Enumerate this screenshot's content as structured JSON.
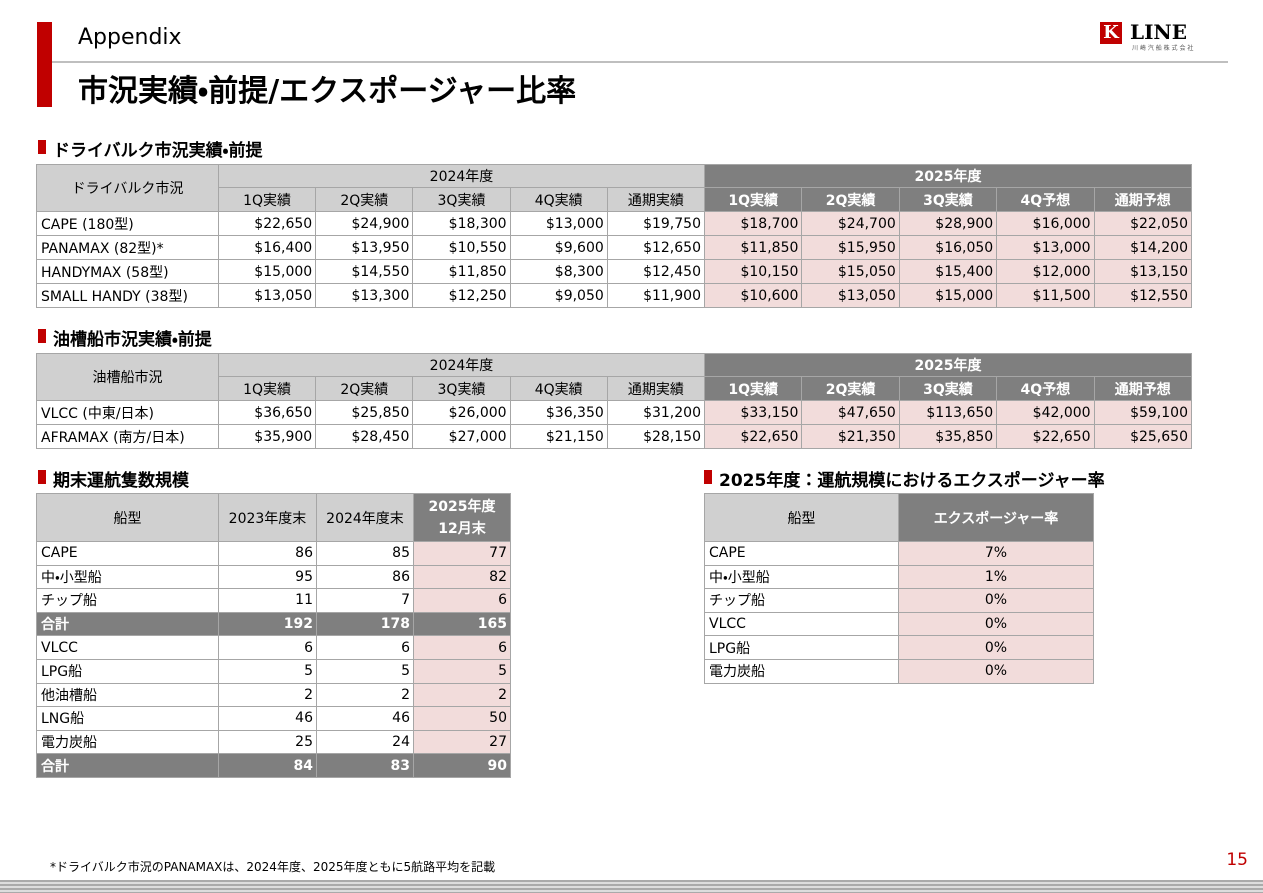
{
  "header": {
    "section": "Appendix",
    "title": "市況実績・前提/エクスポージャー比率",
    "logo": {
      "mark": "K",
      "name": "LINE",
      "sub": "川 崎 汽 船 株 式 会 社"
    }
  },
  "dry_bulk": {
    "heading": "ドライバルク市況実績・前提",
    "corner": "ドライバルク市況",
    "fy2024": {
      "label": "2024年度",
      "columns": [
        "1Q実績",
        "2Q実績",
        "3Q実績",
        "4Q実績",
        "通期実績"
      ]
    },
    "fy2025": {
      "label": "2025年度",
      "columns": [
        "1Q実績",
        "2Q実績",
        "3Q実績",
        "4Q予想",
        "通期予想"
      ]
    },
    "rows": [
      [
        "CAPE (180型)",
        "$22,650",
        "$24,900",
        "$18,300",
        "$13,000",
        "$19,750",
        "$18,700",
        "$24,700",
        "$28,900",
        "$16,000",
        "$22,050"
      ],
      [
        "PANAMAX (82型)*",
        "$16,400",
        "$13,950",
        "$10,550",
        "$9,600",
        "$12,650",
        "$11,850",
        "$15,950",
        "$16,050",
        "$13,000",
        "$14,200"
      ],
      [
        "HANDYMAX (58型)",
        "$15,000",
        "$14,550",
        "$11,850",
        "$8,300",
        "$12,450",
        "$10,150",
        "$15,050",
        "$15,400",
        "$12,000",
        "$13,150"
      ],
      [
        "SMALL HANDY (38型)",
        "$13,050",
        "$13,300",
        "$12,250",
        "$9,050",
        "$11,900",
        "$10,600",
        "$13,050",
        "$15,000",
        "$11,500",
        "$12,550"
      ]
    ]
  },
  "tanker": {
    "heading": "油槽船市況実績・前提",
    "corner": "油槽船市況",
    "fy2024": {
      "label": "2024年度",
      "columns": [
        "1Q実績",
        "2Q実績",
        "3Q実績",
        "4Q実績",
        "通期実績"
      ]
    },
    "fy2025": {
      "label": "2025年度",
      "columns": [
        "1Q実績",
        "2Q実績",
        "3Q実績",
        "4Q予想",
        "通期予想"
      ]
    },
    "rows": [
      [
        "VLCC (中東/日本)",
        "$36,650",
        "$25,850",
        "$26,000",
        "$36,350",
        "$31,200",
        "$33,150",
        "$47,650",
        "$113,650",
        "$42,000",
        "$59,100"
      ],
      [
        "AFRAMAX (南方/日本)",
        "$35,900",
        "$28,450",
        "$27,000",
        "$21,150",
        "$28,150",
        "$22,650",
        "$21,350",
        "$35,850",
        "$22,650",
        "$25,650"
      ]
    ]
  },
  "fleet": {
    "heading": "期末運航隻数規模",
    "columns": [
      "船型",
      "2023年度末",
      "2024年度末",
      [
        "2025年度",
        "12月末"
      ]
    ],
    "groups": [
      {
        "rows": [
          [
            "CAPE",
            "86",
            "85",
            "77"
          ],
          [
            "中・小型船",
            "95",
            "86",
            "82"
          ],
          [
            "チップ船",
            "11",
            "7",
            "6"
          ]
        ],
        "total": [
          "合計",
          "192",
          "178",
          "165"
        ]
      },
      {
        "rows": [
          [
            "VLCC",
            "6",
            "6",
            "6"
          ],
          [
            "LPG船",
            "5",
            "5",
            "5"
          ],
          [
            "他油槽船",
            "2",
            "2",
            "2"
          ],
          [
            "LNG船",
            "46",
            "46",
            "50"
          ],
          [
            "電力炭船",
            "25",
            "24",
            "27"
          ]
        ],
        "total": [
          "合計",
          "84",
          "83",
          "90"
        ]
      }
    ]
  },
  "exposure": {
    "heading": "2025年度：運航規模におけるエクスポージャー率",
    "columns": [
      "船型",
      "エクスポージャー率"
    ],
    "rows": [
      [
        "CAPE",
        "7%"
      ],
      [
        "中・小型船",
        "1%"
      ],
      [
        "チップ船",
        "0%"
      ],
      [
        "VLCC",
        "0%"
      ],
      [
        "LPG船",
        "0%"
      ],
      [
        "電力炭船",
        "0%"
      ]
    ]
  },
  "footnote": "*ドライバルク市況のPANAMAXは、2024年度、2025年度ともに5航路平均を記載",
  "page_number": "15"
}
